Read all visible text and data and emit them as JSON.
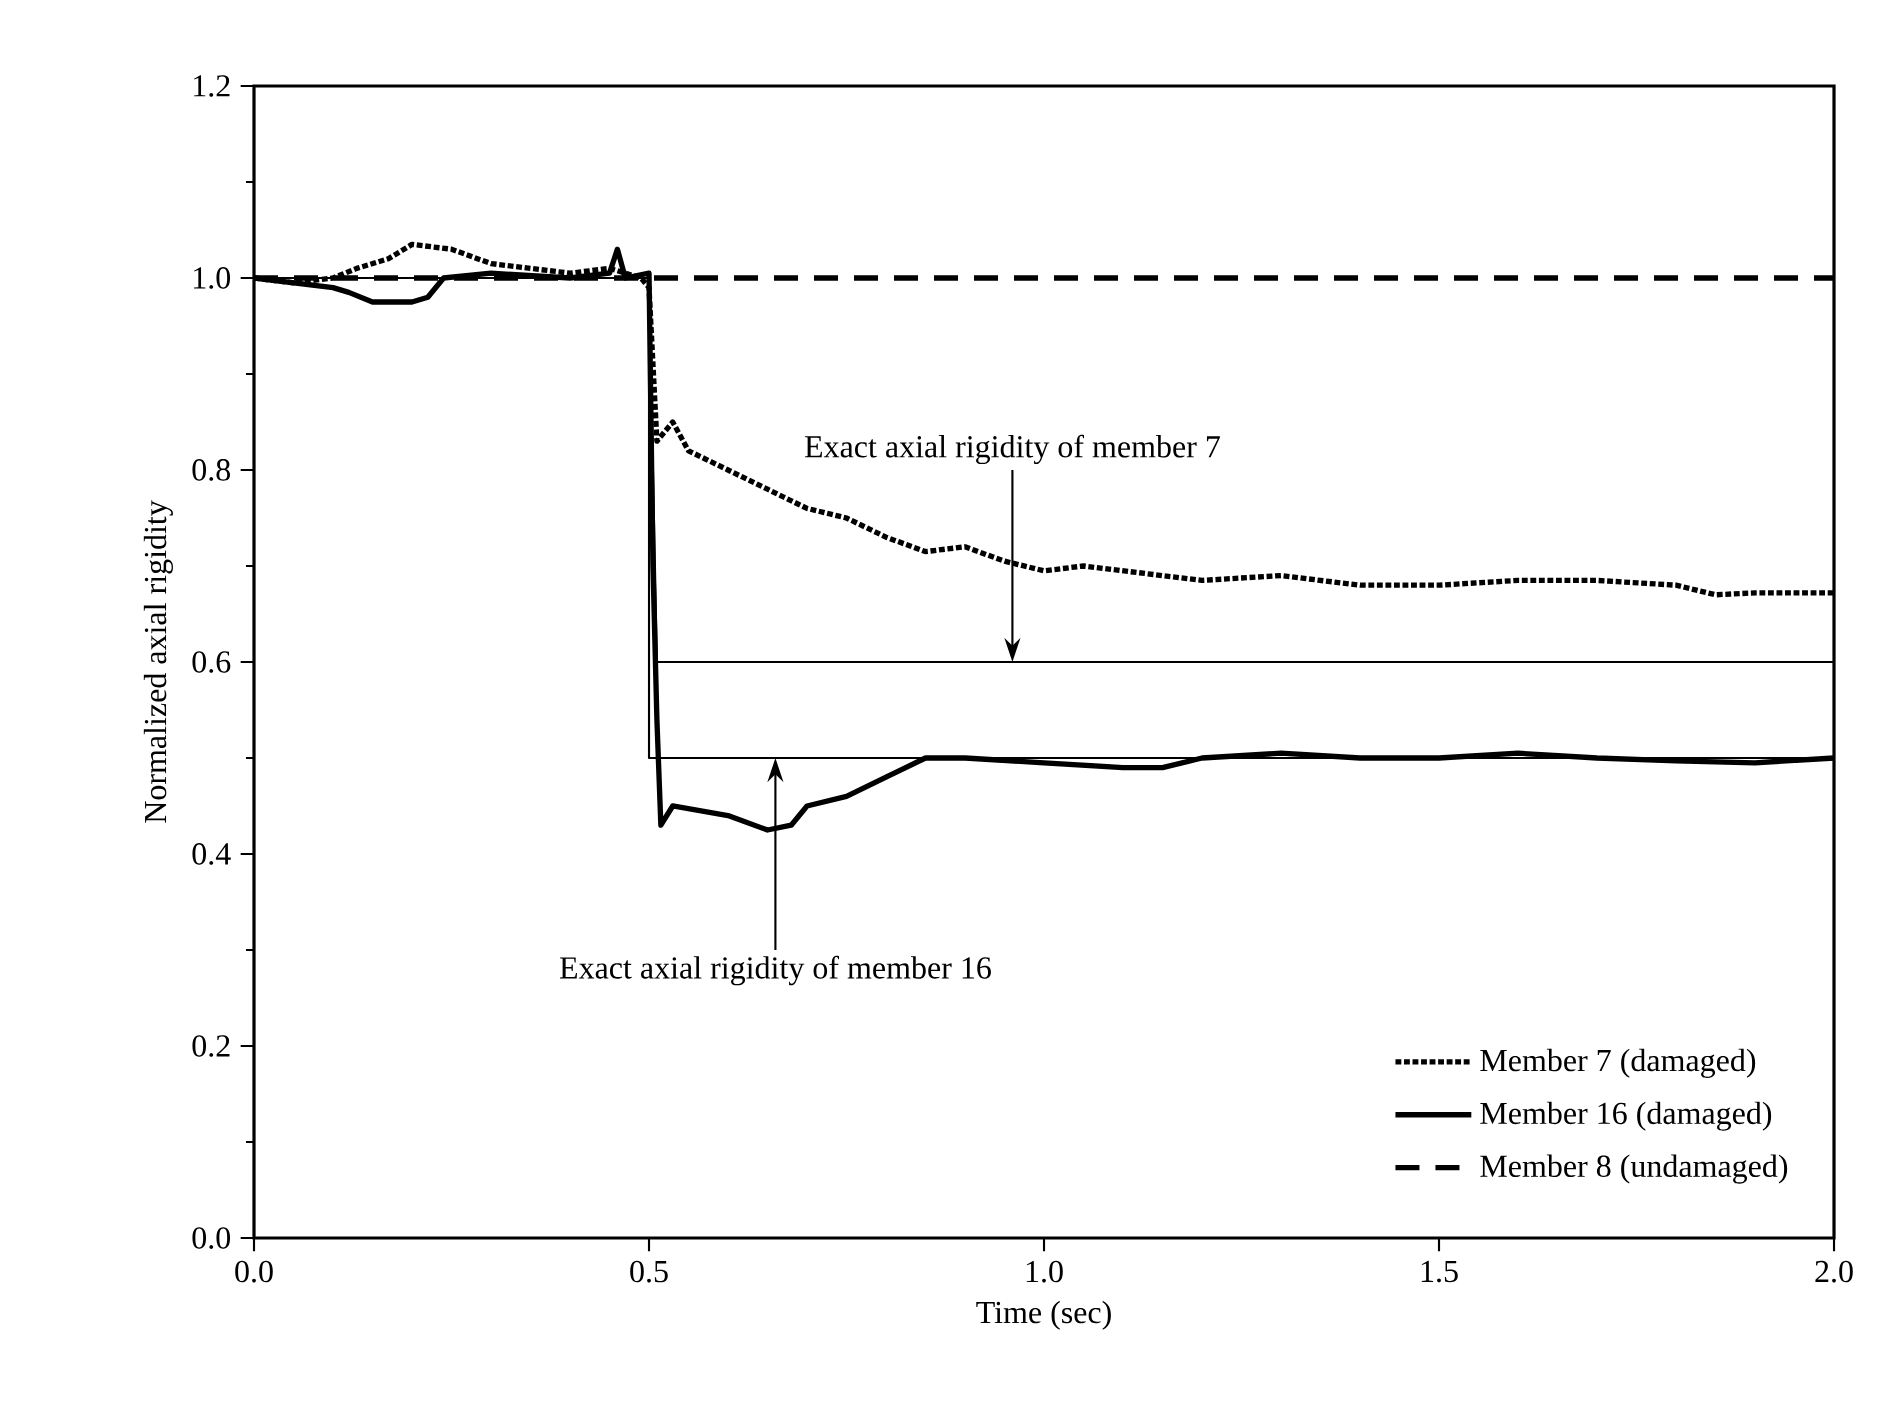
{
  "chart_data": {
    "type": "line",
    "xlabel": "Time (sec)",
    "ylabel": "Normalized axial rigidity",
    "xlim": [
      0,
      2.0
    ],
    "ylim": [
      0,
      1.2
    ],
    "xticks": [
      {
        "value": 0,
        "label": "0.0"
      },
      {
        "value": 0.5,
        "label": "0.5"
      },
      {
        "value": 1.0,
        "label": "1.0"
      },
      {
        "value": 1.5,
        "label": "1.5"
      },
      {
        "value": 2.0,
        "label": "2.0"
      }
    ],
    "yticks": [
      {
        "value": 0,
        "label": "0.0"
      },
      {
        "value": 0.2,
        "label": "0.2"
      },
      {
        "value": 0.4,
        "label": "0.4"
      },
      {
        "value": 0.6,
        "label": "0.6"
      },
      {
        "value": 0.8,
        "label": "0.8"
      },
      {
        "value": 1.0,
        "label": "1.0"
      },
      {
        "value": 1.2,
        "label": "1.2"
      }
    ],
    "legend": "bottom right",
    "series": [
      {
        "name": "Member 7 (damaged)",
        "color": "#000000",
        "line_style": "dotted",
        "x": [
          0,
          0.05,
          0.1,
          0.13,
          0.17,
          0.2,
          0.25,
          0.3,
          0.35,
          0.4,
          0.45,
          0.49,
          0.5,
          0.51,
          0.53,
          0.55,
          0.6,
          0.65,
          0.7,
          0.75,
          0.8,
          0.85,
          0.9,
          0.95,
          1.0,
          1.05,
          1.1,
          1.2,
          1.3,
          1.4,
          1.5,
          1.6,
          1.7,
          1.8,
          1.85,
          1.9,
          2.0
        ],
        "values": [
          1.0,
          0.995,
          1.0,
          1.01,
          1.02,
          1.035,
          1.03,
          1.015,
          1.01,
          1.005,
          1.01,
          1.0,
          0.99,
          0.83,
          0.85,
          0.82,
          0.8,
          0.78,
          0.76,
          0.75,
          0.73,
          0.715,
          0.72,
          0.705,
          0.695,
          0.7,
          0.695,
          0.685,
          0.69,
          0.68,
          0.68,
          0.685,
          0.685,
          0.68,
          0.67,
          0.672,
          0.672
        ]
      },
      {
        "name": "Member 16 (damaged)",
        "color": "#000000",
        "line_style": "solid",
        "x": [
          0,
          0.05,
          0.1,
          0.12,
          0.15,
          0.2,
          0.22,
          0.24,
          0.3,
          0.4,
          0.45,
          0.46,
          0.47,
          0.5,
          0.505,
          0.51,
          0.515,
          0.53,
          0.6,
          0.65,
          0.68,
          0.7,
          0.75,
          0.8,
          0.85,
          0.9,
          1.0,
          1.1,
          1.15,
          1.2,
          1.3,
          1.4,
          1.5,
          1.6,
          1.7,
          1.8,
          1.9,
          2.0
        ],
        "values": [
          1.0,
          0.995,
          0.99,
          0.985,
          0.975,
          0.975,
          0.98,
          1.0,
          1.005,
          1.0,
          1.005,
          1.03,
          1.0,
          1.005,
          0.7,
          0.54,
          0.43,
          0.45,
          0.44,
          0.425,
          0.43,
          0.45,
          0.46,
          0.48,
          0.5,
          0.5,
          0.495,
          0.49,
          0.49,
          0.5,
          0.505,
          0.5,
          0.5,
          0.505,
          0.5,
          0.497,
          0.495,
          0.5
        ]
      },
      {
        "name": "Member 8 (undamaged)",
        "color": "#000000",
        "line_style": "dashed",
        "x": [
          0,
          2.0
        ],
        "values": [
          1.0,
          1.0
        ]
      },
      {
        "color": "#000000",
        "line_style": "solid",
        "x": [
          0,
          0.5,
          0.51,
          2.0
        ],
        "values": [
          1.0,
          1.0,
          0.6,
          0.6
        ]
      },
      {
        "color": "#000000",
        "line_style": "solid",
        "x": [
          0,
          0.5,
          0.5,
          2.0
        ],
        "values": [
          1.0,
          1.0,
          0.5,
          0.5
        ]
      }
    ],
    "annotations": [
      {
        "text": "Exact axial rigidity of member 7",
        "x": 0.96,
        "y": 0.6
      },
      {
        "text": "Exact axial rigidity of member 16",
        "x": 0.66,
        "y": 0.5
      }
    ]
  }
}
